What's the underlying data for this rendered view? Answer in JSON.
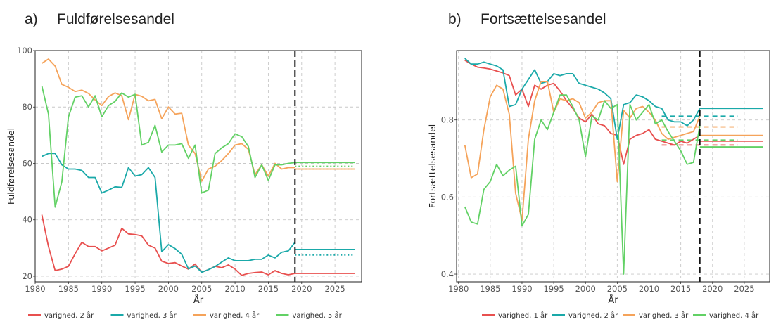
{
  "chart_data": [
    {
      "type": "line",
      "panel_label": "a)",
      "title": "Fuldførelsesandel",
      "xlabel": "År",
      "ylabel": "Fuldførelsesandel",
      "xlim": [
        1980,
        2029
      ],
      "ylim": [
        18,
        100
      ],
      "x_ticks": [
        1980,
        1985,
        1990,
        1995,
        2000,
        2005,
        2010,
        2015,
        2020,
        2025
      ],
      "y_ticks": [
        20,
        40,
        60,
        80,
        100
      ],
      "grid": true,
      "legend_position": "bottom",
      "vline_x": 2019,
      "series": [
        {
          "name": "varighed, 2 år",
          "color": "#e8504f",
          "x": [
            1981,
            1982,
            1983,
            1984,
            1985,
            1986,
            1987,
            1988,
            1989,
            1990,
            1991,
            1992,
            1993,
            1994,
            1995,
            1996,
            1997,
            1998,
            1999,
            2000,
            2001,
            2002,
            2003,
            2004,
            2005,
            2006,
            2007,
            2008,
            2009,
            2010,
            2011,
            2012,
            2013,
            2014,
            2015,
            2016,
            2017,
            2018,
            2019
          ],
          "values": [
            41.8,
            30.5,
            22,
            22.5,
            23.5,
            28,
            32,
            30.5,
            30.5,
            29,
            30,
            31,
            37,
            35,
            34.8,
            34.3,
            31,
            30,
            25.3,
            24.5,
            24.8,
            23.6,
            22.5,
            24.3,
            21.4,
            22.3,
            23.5,
            23,
            24,
            22.5,
            20.3,
            21,
            21.3,
            21.5,
            20.5,
            22,
            21,
            20.5,
            21
          ]
        },
        {
          "name": "varighed, 3 år",
          "color": "#1aa9a9",
          "x": [
            1981,
            1982,
            1983,
            1984,
            1985,
            1986,
            1987,
            1988,
            1989,
            1990,
            1991,
            1992,
            1993,
            1994,
            1995,
            1996,
            1997,
            1998,
            1999,
            2000,
            2001,
            2002,
            2003,
            2004,
            2005,
            2006,
            2007,
            2008,
            2009,
            2010,
            2011,
            2012,
            2013,
            2014,
            2015,
            2016,
            2017,
            2018,
            2019
          ],
          "values": [
            62.5,
            63.5,
            63.5,
            59.5,
            58,
            58,
            57.5,
            55,
            55,
            49.5,
            50.5,
            51.7,
            51.5,
            58.5,
            55.5,
            56,
            58.5,
            55,
            28.7,
            31.2,
            29.8,
            27.8,
            22.6,
            23.6,
            21.4,
            22.3,
            23.4,
            25,
            26.5,
            25.5,
            25.5,
            25.5,
            26,
            26,
            27.5,
            26.5,
            28.5,
            29,
            32
          ]
        },
        {
          "name": "varighed, 4 år",
          "color": "#f5a35a",
          "x": [
            1981,
            1982,
            1983,
            1984,
            1985,
            1986,
            1987,
            1988,
            1989,
            1990,
            1991,
            1992,
            1993,
            1994,
            1995,
            1996,
            1997,
            1998,
            1999,
            2000,
            2001,
            2002,
            2003,
            2004,
            2005,
            2006,
            2007,
            2008,
            2009,
            2010,
            2011,
            2012,
            2013,
            2014,
            2015,
            2016,
            2017,
            2018,
            2019
          ],
          "values": [
            95.5,
            97,
            94.5,
            88,
            87,
            85.5,
            86,
            84.8,
            82.5,
            80.5,
            83.7,
            85,
            84,
            75.5,
            84.5,
            83.8,
            82.2,
            82.7,
            75.8,
            80,
            77.5,
            77.8,
            66.5,
            63.5,
            53.7,
            58,
            59,
            61,
            63.5,
            66.5,
            67,
            65,
            56,
            59.5,
            55.5,
            60,
            58,
            58.5,
            58.5
          ]
        },
        {
          "name": "varighed, 5 år",
          "color": "#62d165",
          "x": [
            1981,
            1982,
            1983,
            1984,
            1985,
            1986,
            1987,
            1988,
            1989,
            1990,
            1991,
            1992,
            1993,
            1994,
            1995,
            1996,
            1997,
            1998,
            1999,
            2000,
            2001,
            2002,
            2003,
            2004,
            2005,
            2006,
            2007,
            2008,
            2009,
            2010,
            2011,
            2012,
            2013,
            2014,
            2015,
            2016,
            2017,
            2018,
            2019
          ],
          "values": [
            87.5,
            77.5,
            44.5,
            53.5,
            76.5,
            83.5,
            84,
            80,
            84,
            76.5,
            80.5,
            82,
            85,
            83.5,
            84.5,
            66.5,
            67.5,
            73.5,
            64,
            66.5,
            66.5,
            67,
            61.8,
            66.5,
            49.5,
            50.5,
            63.5,
            65.5,
            67,
            70.5,
            69.5,
            66,
            55,
            59.5,
            54,
            59.5,
            59.5,
            60,
            60.3
          ]
        }
      ],
      "projections": [
        {
          "series": "varighed, 2 år",
          "x": [
            2019,
            2028
          ],
          "value": 21,
          "style": "solid"
        },
        {
          "series": "varighed, 3 år",
          "x": [
            2019,
            2028
          ],
          "value": 29.5,
          "style": "solid"
        },
        {
          "series": "varighed, 3 år",
          "x": [
            2019,
            2028
          ],
          "value": 27.5,
          "style": "dotted"
        },
        {
          "series": "varighed, 4 år",
          "x": [
            2019,
            2028
          ],
          "value": 58,
          "style": "solid"
        },
        {
          "series": "varighed, 4 år",
          "x": [
            2019,
            2028
          ],
          "value": 58,
          "style": "dotted"
        },
        {
          "series": "varighed, 5 år",
          "x": [
            2019,
            2028
          ],
          "value": 60.3,
          "style": "solid"
        },
        {
          "series": "varighed, 5 år",
          "x": [
            2019,
            2028
          ],
          "value": 59,
          "style": "dotted"
        }
      ]
    },
    {
      "type": "line",
      "panel_label": "b)",
      "title": "Fortsættelsesandel",
      "xlabel": "År",
      "ylabel": "Fortsættelsesandel",
      "xlim": [
        1979.7,
        2029
      ],
      "ylim": [
        0.38,
        0.98
      ],
      "x_ticks": [
        1980,
        1985,
        1990,
        1995,
        2000,
        2005,
        2010,
        2015,
        2020,
        2025
      ],
      "y_ticks": [
        0.4,
        0.6,
        0.8
      ],
      "grid": true,
      "legend_position": "bottom",
      "vline_x": 2018,
      "series": [
        {
          "name": "varighed, 1 år",
          "color": "#e8504f",
          "x": [
            1981,
            1982,
            1983,
            1984,
            1985,
            1986,
            1987,
            1988,
            1989,
            1990,
            1991,
            1992,
            1993,
            1994,
            1995,
            1996,
            1997,
            1998,
            1999,
            2000,
            2001,
            2002,
            2003,
            2004,
            2005,
            2006,
            2007,
            2008,
            2009,
            2010,
            2011,
            2012,
            2013,
            2014,
            2015,
            2016,
            2017,
            2018
          ],
          "values": [
            0.955,
            0.945,
            0.937,
            0.935,
            0.932,
            0.927,
            0.922,
            0.915,
            0.865,
            0.88,
            0.835,
            0.89,
            0.88,
            0.89,
            0.895,
            0.875,
            0.85,
            0.83,
            0.805,
            0.795,
            0.815,
            0.79,
            0.785,
            0.765,
            0.76,
            0.685,
            0.75,
            0.76,
            0.765,
            0.775,
            0.75,
            0.745,
            0.74,
            0.735,
            0.745,
            0.74,
            0.75,
            0.76
          ]
        },
        {
          "name": "varighed, 2 år",
          "color": "#1aa9a9",
          "x": [
            1981,
            1982,
            1983,
            1984,
            1985,
            1986,
            1987,
            1988,
            1989,
            1990,
            1991,
            1992,
            1993,
            1994,
            1995,
            1996,
            1997,
            1998,
            1999,
            2000,
            2001,
            2002,
            2003,
            2004,
            2005,
            2006,
            2007,
            2008,
            2009,
            2010,
            2011,
            2012,
            2013,
            2014,
            2015,
            2016,
            2017,
            2018
          ],
          "values": [
            0.96,
            0.945,
            0.945,
            0.95,
            0.945,
            0.94,
            0.93,
            0.835,
            0.84,
            0.88,
            0.905,
            0.93,
            0.895,
            0.9,
            0.92,
            0.915,
            0.92,
            0.92,
            0.895,
            0.89,
            0.885,
            0.88,
            0.87,
            0.855,
            0.75,
            0.84,
            0.845,
            0.865,
            0.86,
            0.85,
            0.835,
            0.83,
            0.8,
            0.795,
            0.795,
            0.785,
            0.8,
            0.83
          ]
        },
        {
          "name": "varighed, 3 år",
          "color": "#f5a35a",
          "x": [
            1981,
            1982,
            1983,
            1984,
            1985,
            1986,
            1987,
            1988,
            1989,
            1990,
            1991,
            1992,
            1993,
            1994,
            1995,
            1996,
            1997,
            1998,
            1999,
            2000,
            2001,
            2002,
            2003,
            2004,
            2005,
            2006,
            2007,
            2008,
            2009,
            2010,
            2011,
            2012,
            2013,
            2014,
            2015,
            2016,
            2017,
            2018
          ],
          "values": [
            0.735,
            0.65,
            0.66,
            0.775,
            0.86,
            0.89,
            0.88,
            0.815,
            0.61,
            0.54,
            0.75,
            0.85,
            0.9,
            0.9,
            0.82,
            0.855,
            0.85,
            0.855,
            0.845,
            0.805,
            0.82,
            0.845,
            0.85,
            0.85,
            0.64,
            0.825,
            0.805,
            0.83,
            0.835,
            0.82,
            0.8,
            0.765,
            0.75,
            0.755,
            0.76,
            0.765,
            0.77,
            0.81
          ]
        },
        {
          "name": "varighed, 4 år",
          "color": "#62d165",
          "x": [
            1981,
            1982,
            1983,
            1984,
            1985,
            1986,
            1987,
            1988,
            1989,
            1990,
            1991,
            1992,
            1993,
            1994,
            1995,
            1996,
            1997,
            1998,
            1999,
            2000,
            2001,
            2002,
            2003,
            2004,
            2005,
            2006,
            2007,
            2008,
            2009,
            2010,
            2011,
            2012,
            2013,
            2014,
            2015,
            2016,
            2017,
            2018
          ],
          "values": [
            0.575,
            0.535,
            0.53,
            0.62,
            0.64,
            0.685,
            0.655,
            0.67,
            0.68,
            0.525,
            0.555,
            0.75,
            0.8,
            0.775,
            0.82,
            0.865,
            0.865,
            0.835,
            0.8,
            0.705,
            0.81,
            0.8,
            0.85,
            0.83,
            0.84,
            0.4,
            0.84,
            0.8,
            0.82,
            0.84,
            0.79,
            0.8,
            0.77,
            0.745,
            0.72,
            0.685,
            0.69,
            0.785
          ]
        }
      ],
      "projections": [
        {
          "series": "varighed, 1 år",
          "x": [
            2018,
            2028
          ],
          "value": 0.745,
          "style": "solid"
        },
        {
          "series": "varighed, 1 år",
          "x": [
            2012,
            2024
          ],
          "value": 0.735,
          "style": "dashed"
        },
        {
          "series": "varighed, 2 år",
          "x": [
            2018,
            2028
          ],
          "value": 0.83,
          "style": "solid"
        },
        {
          "series": "varighed, 2 år",
          "x": [
            2012,
            2024
          ],
          "value": 0.81,
          "style": "dashed"
        },
        {
          "series": "varighed, 3 år",
          "x": [
            2018,
            2028
          ],
          "value": 0.76,
          "style": "solid"
        },
        {
          "series": "varighed, 3 år",
          "x": [
            2012,
            2024
          ],
          "value": 0.782,
          "style": "dashed"
        },
        {
          "series": "varighed, 4 år",
          "x": [
            2018,
            2028
          ],
          "value": 0.73,
          "style": "solid"
        },
        {
          "series": "varighed, 4 år",
          "x": [
            2012,
            2024
          ],
          "value": 0.748,
          "style": "dashed"
        }
      ]
    }
  ]
}
